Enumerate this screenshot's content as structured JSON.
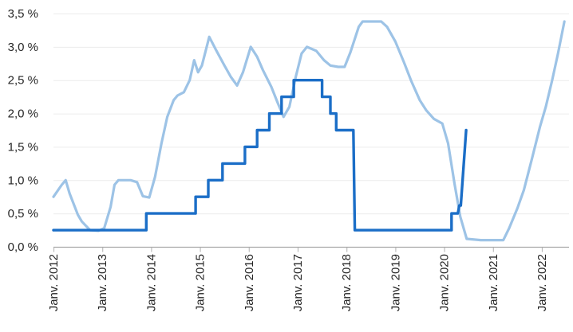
{
  "chart_data": {
    "type": "line",
    "title": "",
    "xlabel": "",
    "ylabel": "",
    "grid": "horizontal",
    "legend": "none",
    "ylim": [
      0,
      3.5
    ],
    "xlim_years_from_2012": [
      0,
      10.6
    ],
    "y_tick_labels": [
      "0,0 %",
      "0,5 %",
      "1,0 %",
      "1,5 %",
      "2,0 %",
      "2,5 %",
      "3,0 %",
      "3,5 %"
    ],
    "y_tick_values": [
      0,
      0.5,
      1,
      1.5,
      2,
      2.5,
      3,
      3.5
    ],
    "x_tick_labels": [
      "Janv. 2012",
      "Janv. 2013",
      "Janv. 2014",
      "Janv. 2015",
      "Janv. 2016",
      "Janv. 2017",
      "Janv. 2018",
      "Janv. 2019",
      "Janv. 2020",
      "Janv. 2021",
      "Janv. 2022"
    ],
    "x_tick_years": [
      0,
      1,
      2,
      3,
      4,
      5,
      6,
      7,
      8,
      9,
      10
    ],
    "colors": {
      "light_series": "#9DC3E6",
      "dark_series": "#1B6EC7",
      "axis_line": "#a6a6a6",
      "tick_mark": "#bdbdbd",
      "gridline": "#ececec",
      "label_text": "#262626"
    },
    "series": [
      {
        "name": "light-blue-rate",
        "color": "#9DC3E6",
        "stroke_width": 3.2,
        "points": [
          [
            0.0,
            0.75
          ],
          [
            0.17,
            0.93
          ],
          [
            0.25,
            1.0
          ],
          [
            0.33,
            0.8
          ],
          [
            0.5,
            0.48
          ],
          [
            0.58,
            0.38
          ],
          [
            0.75,
            0.25
          ],
          [
            0.92,
            0.24
          ],
          [
            1.04,
            0.28
          ],
          [
            1.17,
            0.6
          ],
          [
            1.25,
            0.93
          ],
          [
            1.33,
            1.0
          ],
          [
            1.46,
            1.0
          ],
          [
            1.58,
            1.0
          ],
          [
            1.71,
            0.97
          ],
          [
            1.83,
            0.76
          ],
          [
            1.96,
            0.74
          ],
          [
            2.08,
            1.05
          ],
          [
            2.21,
            1.55
          ],
          [
            2.33,
            1.95
          ],
          [
            2.46,
            2.2
          ],
          [
            2.54,
            2.27
          ],
          [
            2.67,
            2.32
          ],
          [
            2.79,
            2.5
          ],
          [
            2.88,
            2.8
          ],
          [
            2.96,
            2.62
          ],
          [
            3.04,
            2.72
          ],
          [
            3.19,
            3.15
          ],
          [
            3.33,
            2.95
          ],
          [
            3.5,
            2.72
          ],
          [
            3.63,
            2.55
          ],
          [
            3.76,
            2.42
          ],
          [
            3.88,
            2.62
          ],
          [
            4.04,
            3.0
          ],
          [
            4.17,
            2.85
          ],
          [
            4.29,
            2.65
          ],
          [
            4.46,
            2.4
          ],
          [
            4.58,
            2.18
          ],
          [
            4.71,
            1.95
          ],
          [
            4.83,
            2.1
          ],
          [
            4.96,
            2.55
          ],
          [
            5.08,
            2.9
          ],
          [
            5.19,
            3.0
          ],
          [
            5.38,
            2.94
          ],
          [
            5.54,
            2.8
          ],
          [
            5.67,
            2.72
          ],
          [
            5.83,
            2.7
          ],
          [
            5.96,
            2.7
          ],
          [
            6.08,
            2.92
          ],
          [
            6.25,
            3.3
          ],
          [
            6.33,
            3.38
          ],
          [
            6.5,
            3.38
          ],
          [
            6.71,
            3.38
          ],
          [
            6.83,
            3.3
          ],
          [
            7.0,
            3.08
          ],
          [
            7.17,
            2.78
          ],
          [
            7.33,
            2.48
          ],
          [
            7.5,
            2.2
          ],
          [
            7.63,
            2.05
          ],
          [
            7.79,
            1.92
          ],
          [
            7.96,
            1.85
          ],
          [
            8.08,
            1.55
          ],
          [
            8.21,
            0.95
          ],
          [
            8.33,
            0.45
          ],
          [
            8.46,
            0.12
          ],
          [
            8.75,
            0.1
          ],
          [
            9.0,
            0.1
          ],
          [
            9.21,
            0.1
          ],
          [
            9.33,
            0.28
          ],
          [
            9.5,
            0.58
          ],
          [
            9.63,
            0.85
          ],
          [
            9.79,
            1.3
          ],
          [
            9.96,
            1.8
          ],
          [
            10.08,
            2.1
          ],
          [
            10.21,
            2.5
          ],
          [
            10.33,
            2.9
          ],
          [
            10.46,
            3.38
          ]
        ]
      },
      {
        "name": "dark-blue-stepped-rate",
        "color": "#1B6EC7",
        "stroke_width": 3.4,
        "points": [
          [
            0.0,
            0.25
          ],
          [
            1.9,
            0.25
          ],
          [
            1.9,
            0.5
          ],
          [
            2.91,
            0.5
          ],
          [
            2.91,
            0.75
          ],
          [
            3.17,
            0.75
          ],
          [
            3.17,
            1.0
          ],
          [
            3.46,
            1.0
          ],
          [
            3.46,
            1.25
          ],
          [
            3.92,
            1.25
          ],
          [
            3.92,
            1.5
          ],
          [
            4.17,
            1.5
          ],
          [
            4.17,
            1.75
          ],
          [
            4.42,
            1.75
          ],
          [
            4.42,
            2.0
          ],
          [
            4.67,
            2.0
          ],
          [
            4.67,
            2.25
          ],
          [
            4.92,
            2.25
          ],
          [
            4.92,
            2.5
          ],
          [
            5.5,
            2.5
          ],
          [
            5.5,
            2.25
          ],
          [
            5.67,
            2.25
          ],
          [
            5.67,
            2.0
          ],
          [
            5.79,
            2.0
          ],
          [
            5.79,
            1.75
          ],
          [
            6.14,
            1.75
          ],
          [
            6.17,
            0.25
          ],
          [
            8.15,
            0.25
          ],
          [
            8.15,
            0.5
          ],
          [
            8.28,
            0.5
          ],
          [
            8.31,
            0.62
          ],
          [
            8.34,
            0.62
          ],
          [
            8.45,
            1.75
          ]
        ]
      }
    ]
  }
}
